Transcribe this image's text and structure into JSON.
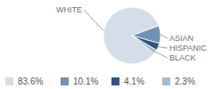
{
  "chart_data": {
    "type": "pie",
    "categories": [
      "WHITE",
      "ASIAN",
      "HISPANIC",
      "BLACK"
    ],
    "values": [
      83.6,
      10.1,
      4.1,
      2.3
    ],
    "value_labels": [
      "83.6%",
      "10.1%",
      "4.1%",
      "2.3%"
    ],
    "colors": [
      "#d5dee8",
      "#7391b3",
      "#30567f",
      "#a9bbce"
    ],
    "data_labels": true,
    "legend": "bottom"
  }
}
